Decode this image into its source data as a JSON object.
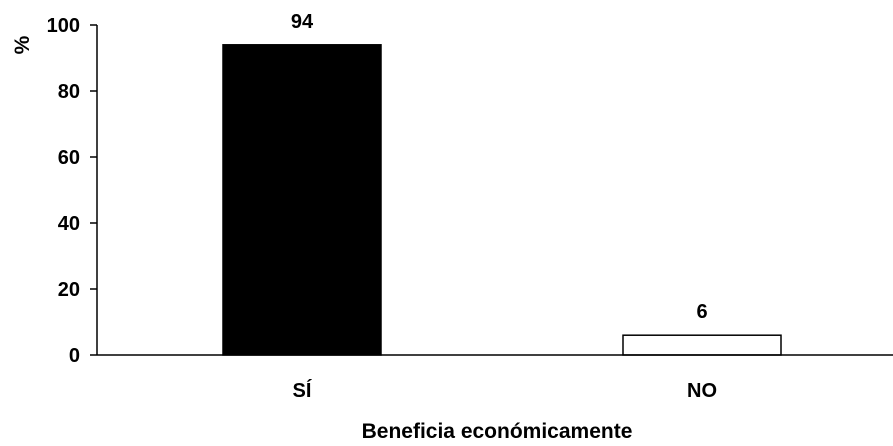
{
  "chart_data": {
    "type": "bar",
    "categories": [
      "SÍ",
      "NO"
    ],
    "values": [
      94,
      6
    ],
    "data_labels": [
      "94",
      "6"
    ],
    "bar_colors": [
      "#000000",
      "#ffffff"
    ],
    "xlabel": "Beneficia económicamente",
    "ylabel": "%",
    "ylim": [
      0,
      100
    ],
    "yticks": [
      0,
      20,
      40,
      60,
      80,
      100
    ],
    "grid": false,
    "legend": "none"
  }
}
